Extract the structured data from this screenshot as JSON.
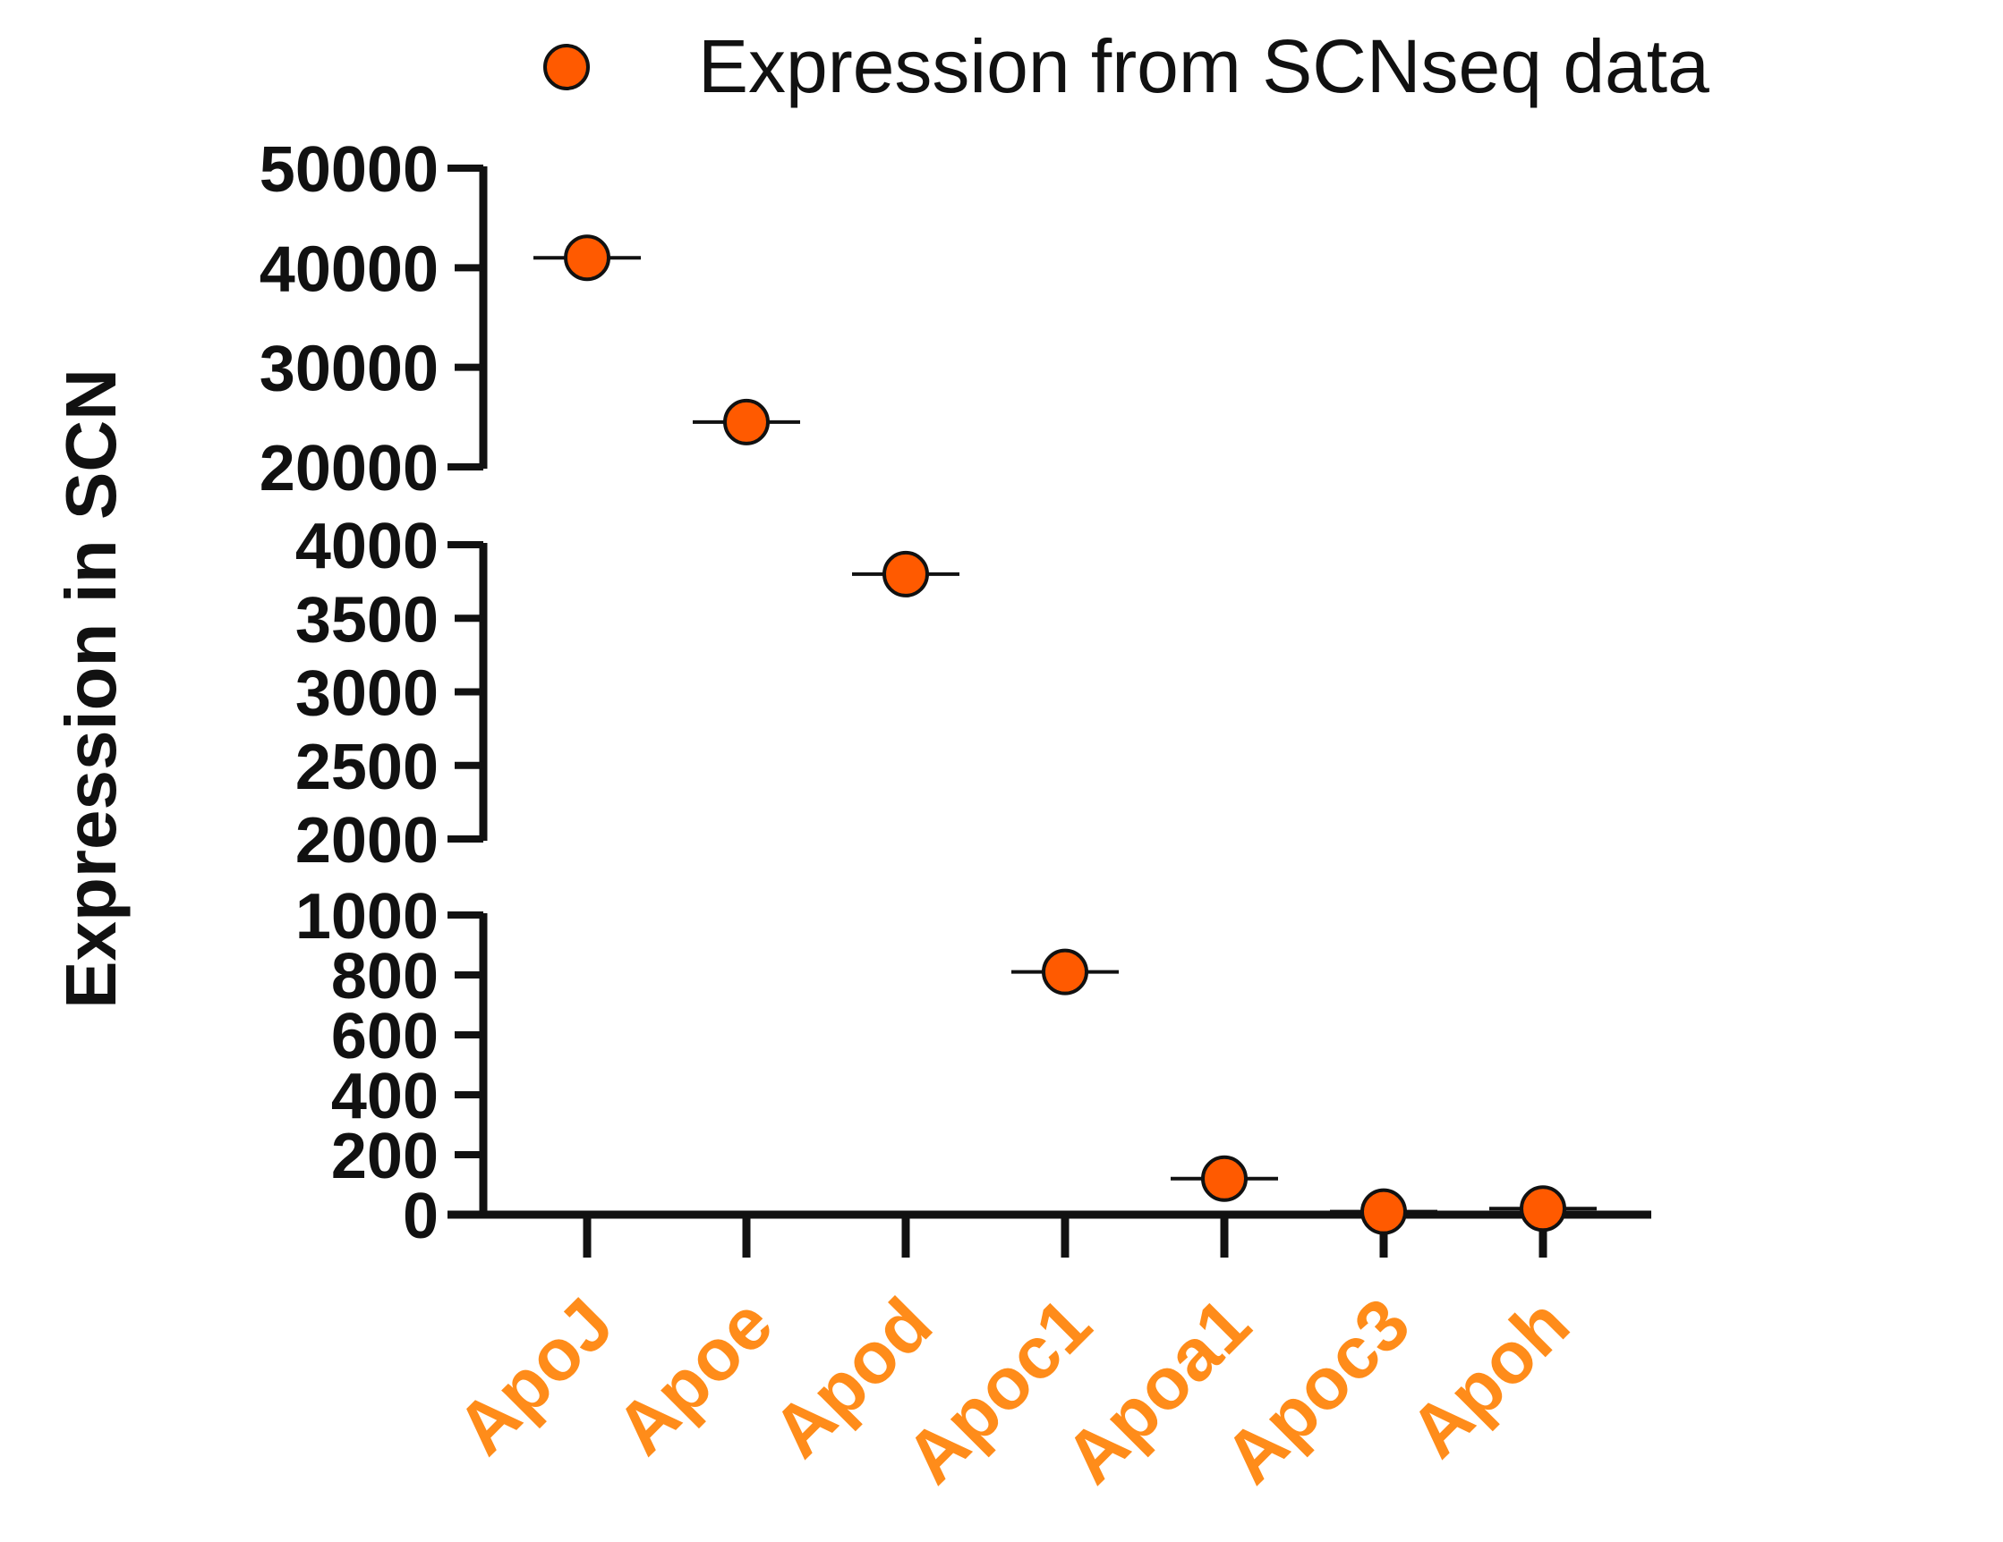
{
  "chart_data": {
    "type": "scatter",
    "title": "",
    "xlabel": "",
    "ylabel": "Expression in SCN",
    "legend": {
      "position": "top-right",
      "label": "Expression from SCNseq data"
    },
    "categories": [
      "ApoJ",
      "Apoe",
      "Apod",
      "Apoc1",
      "Apoa1",
      "Apoc3",
      "Apoh"
    ],
    "series": [
      {
        "name": "Expression from SCNseq data",
        "values": [
          41000,
          24500,
          3800,
          810,
          120,
          10,
          20
        ]
      }
    ],
    "y_axis_segments": [
      {
        "range": [
          0,
          1000
        ],
        "ticks": [
          "0",
          "200",
          "400",
          "600",
          "800",
          "1000"
        ]
      },
      {
        "range": [
          2000,
          4000
        ],
        "ticks": [
          "2000",
          "2500",
          "3000",
          "3500",
          "4000"
        ]
      },
      {
        "range": [
          20000,
          50000
        ],
        "ticks": [
          "20000",
          "30000",
          "40000",
          "50000"
        ]
      }
    ],
    "grid": false,
    "colors": {
      "marker": "#ff5a00",
      "category_label": "#ff8c1a",
      "axis": "#111111"
    }
  }
}
